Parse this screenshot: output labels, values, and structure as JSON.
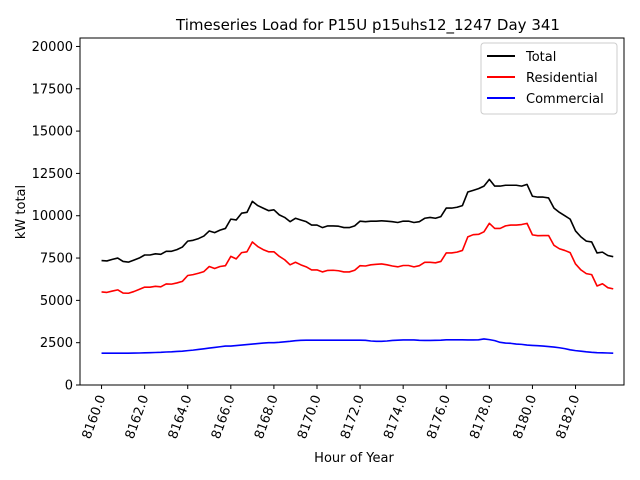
{
  "chart_data": {
    "type": "line",
    "title": "Timeseries Load for P15U p15uhs12_1247  Day 341",
    "xlabel": "Hour of Year",
    "ylabel": "kW total",
    "xlim": [
      8159.0,
      8184.25
    ],
    "ylim": [
      0,
      20500
    ],
    "xticks": [
      "8160.0",
      "8162.0",
      "8164.0",
      "8166.0",
      "8168.0",
      "8170.0",
      "8172.0",
      "8174.0",
      "8176.0",
      "8178.0",
      "8180.0",
      "8182.0"
    ],
    "yticks": [
      "0",
      "2500",
      "5000",
      "7500",
      "10000",
      "12500",
      "15000",
      "17500",
      "20000"
    ],
    "legend_position": "top-right",
    "x": [
      8160.0,
      8160.25,
      8160.5,
      8160.75,
      8161.0,
      8161.25,
      8161.5,
      8161.75,
      8162.0,
      8162.25,
      8162.5,
      8162.75,
      8163.0,
      8163.25,
      8163.5,
      8163.75,
      8164.0,
      8164.25,
      8164.5,
      8164.75,
      8165.0,
      8165.25,
      8165.5,
      8165.75,
      8166.0,
      8166.25,
      8166.5,
      8166.75,
      8167.0,
      8167.25,
      8167.5,
      8167.75,
      8168.0,
      8168.25,
      8168.5,
      8168.75,
      8169.0,
      8169.25,
      8169.5,
      8169.75,
      8170.0,
      8170.25,
      8170.5,
      8170.75,
      8171.0,
      8171.25,
      8171.5,
      8171.75,
      8172.0,
      8172.25,
      8172.5,
      8172.75,
      8173.0,
      8173.25,
      8173.5,
      8173.75,
      8174.0,
      8174.25,
      8174.5,
      8174.75,
      8175.0,
      8175.25,
      8175.5,
      8175.75,
      8176.0,
      8176.25,
      8176.5,
      8176.75,
      8177.0,
      8177.25,
      8177.5,
      8177.75,
      8178.0,
      8178.25,
      8178.5,
      8178.75,
      8179.0,
      8179.25,
      8179.5,
      8179.75,
      8180.0,
      8180.25,
      8180.5,
      8180.75,
      8181.0,
      8181.25,
      8181.5,
      8181.75,
      8182.0,
      8182.25,
      8182.5,
      8182.75,
      8183.0,
      8183.25,
      8183.5,
      8183.75
    ],
    "series": [
      {
        "name": "Total",
        "color": "#000000",
        "values": [
          7350,
          7330,
          7420,
          7500,
          7300,
          7260,
          7380,
          7500,
          7680,
          7680,
          7750,
          7720,
          7900,
          7900,
          8000,
          8150,
          8500,
          8550,
          8650,
          8800,
          9100,
          9000,
          9150,
          9250,
          9800,
          9750,
          10150,
          10200,
          10850,
          10600,
          10450,
          10300,
          10350,
          10050,
          9900,
          9650,
          9850,
          9750,
          9650,
          9450,
          9450,
          9300,
          9400,
          9400,
          9380,
          9300,
          9300,
          9400,
          9680,
          9650,
          9680,
          9680,
          9700,
          9680,
          9650,
          9600,
          9680,
          9680,
          9600,
          9650,
          9850,
          9900,
          9850,
          9950,
          10450,
          10450,
          10500,
          10600,
          11400,
          11500,
          11600,
          11750,
          12150,
          11750,
          11750,
          11800,
          11800,
          11800,
          11750,
          11850,
          11150,
          11100,
          11100,
          11050,
          10450,
          10200,
          10000,
          9800,
          9100,
          8750,
          8500,
          8450,
          7800,
          7850,
          7650,
          7580
        ]
      },
      {
        "name": "Residential",
        "color": "#ff0000",
        "values": [
          5500,
          5470,
          5550,
          5620,
          5430,
          5420,
          5520,
          5650,
          5780,
          5780,
          5830,
          5800,
          5970,
          5960,
          6030,
          6120,
          6470,
          6520,
          6600,
          6700,
          7000,
          6880,
          7000,
          7050,
          7600,
          7450,
          7820,
          7870,
          8450,
          8180,
          8000,
          7870,
          7870,
          7600,
          7400,
          7100,
          7250,
          7100,
          6980,
          6800,
          6800,
          6680,
          6770,
          6780,
          6750,
          6680,
          6680,
          6780,
          7050,
          7030,
          7100,
          7130,
          7150,
          7100,
          7030,
          6980,
          7060,
          7060,
          6980,
          7050,
          7250,
          7250,
          7220,
          7300,
          7800,
          7800,
          7850,
          7950,
          8750,
          8880,
          8900,
          9050,
          9550,
          9250,
          9250,
          9400,
          9450,
          9450,
          9480,
          9550,
          8870,
          8820,
          8830,
          8830,
          8250,
          8050,
          7950,
          7820,
          7150,
          6800,
          6580,
          6520,
          5850,
          5980,
          5750,
          5680
        ]
      },
      {
        "name": "Commercial",
        "color": "#0000ff",
        "values": [
          1880,
          1880,
          1880,
          1880,
          1880,
          1880,
          1885,
          1890,
          1900,
          1910,
          1920,
          1930,
          1950,
          1960,
          1980,
          2000,
          2030,
          2060,
          2100,
          2140,
          2180,
          2220,
          2260,
          2300,
          2300,
          2330,
          2360,
          2390,
          2420,
          2450,
          2480,
          2500,
          2500,
          2520,
          2550,
          2580,
          2620,
          2640,
          2650,
          2650,
          2650,
          2650,
          2650,
          2650,
          2650,
          2650,
          2650,
          2650,
          2650,
          2640,
          2600,
          2580,
          2580,
          2600,
          2630,
          2650,
          2660,
          2660,
          2660,
          2640,
          2630,
          2630,
          2640,
          2650,
          2670,
          2670,
          2670,
          2670,
          2660,
          2660,
          2670,
          2720,
          2680,
          2620,
          2520,
          2480,
          2460,
          2420,
          2400,
          2360,
          2340,
          2320,
          2300,
          2270,
          2240,
          2200,
          2150,
          2080,
          2030,
          2000,
          1960,
          1930,
          1910,
          1900,
          1890,
          1880
        ]
      }
    ]
  }
}
